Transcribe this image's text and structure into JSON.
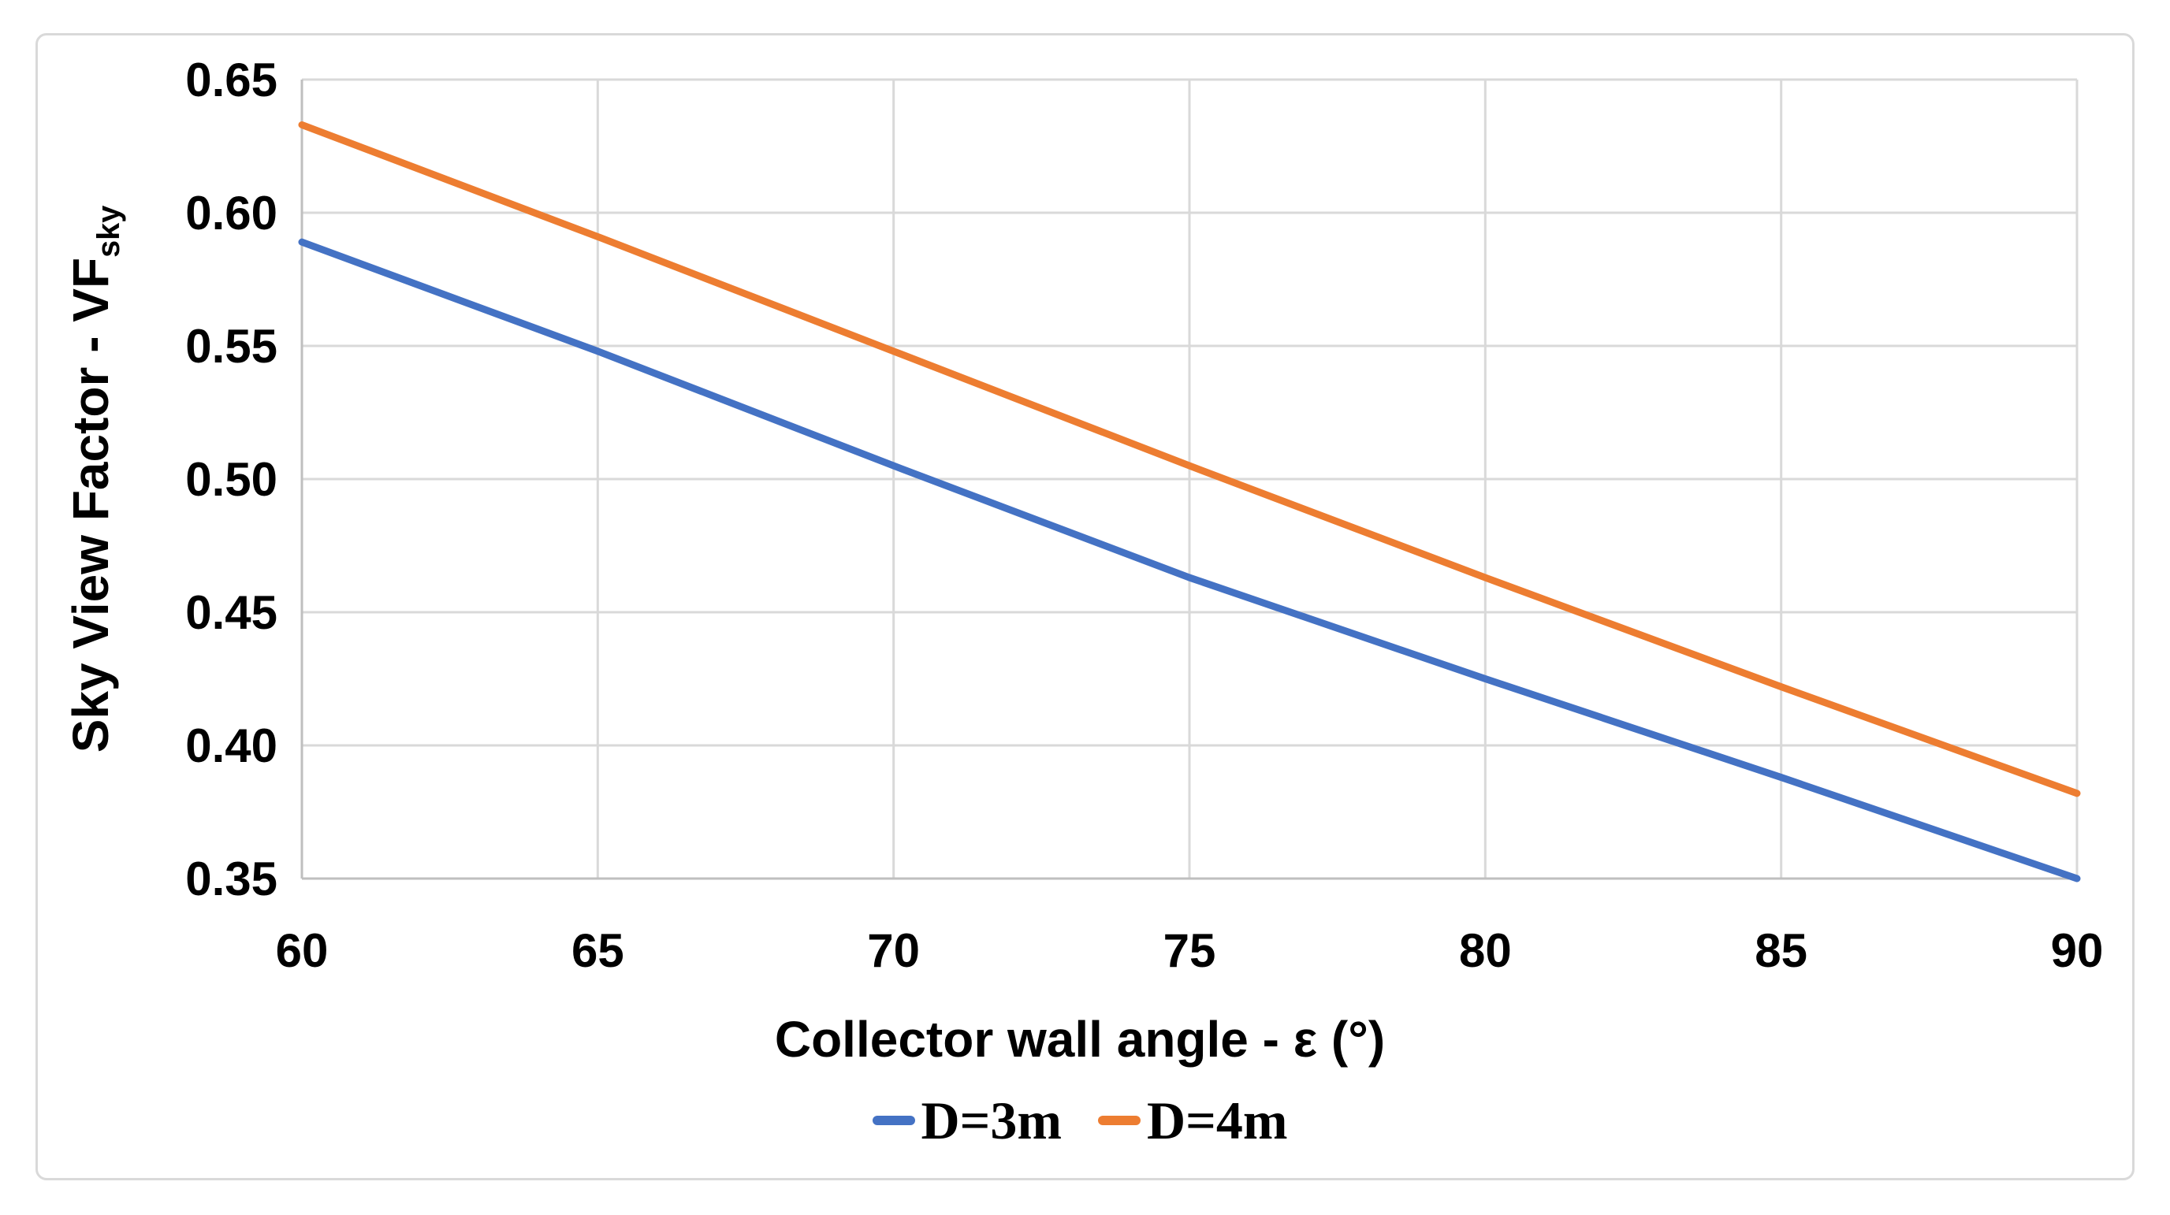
{
  "chart_data": {
    "type": "line",
    "title": "",
    "xlabel": "Collector wall angle - ε (°)",
    "ylabel": "Sky View Factor - VF",
    "ylabel_sub": "sky",
    "xlim": [
      60,
      90
    ],
    "ylim": [
      0.35,
      0.65
    ],
    "x_ticks": [
      60,
      65,
      70,
      75,
      80,
      85,
      90
    ],
    "x_tick_labels": [
      "60",
      "65",
      "70",
      "75",
      "80",
      "85",
      "90"
    ],
    "y_ticks": [
      0.35,
      0.4,
      0.45,
      0.5,
      0.55,
      0.6,
      0.65
    ],
    "y_tick_labels": [
      "0.35",
      "0.40",
      "0.45",
      "0.50",
      "0.55",
      "0.60",
      "0.65"
    ],
    "grid": true,
    "legend_position": "bottom",
    "x": [
      60,
      65,
      70,
      75,
      80,
      85,
      90
    ],
    "series": [
      {
        "name": "D=3m",
        "color": "#4472C4",
        "values": [
          0.589,
          0.548,
          0.505,
          0.463,
          0.425,
          0.388,
          0.35
        ]
      },
      {
        "name": "D=4m",
        "color": "#ED7D31",
        "values": [
          0.633,
          0.591,
          0.548,
          0.505,
          0.463,
          0.422,
          0.382
        ]
      }
    ],
    "colors": {
      "gridline": "#d9d9d9",
      "axis_line": "#bfbfbf",
      "text": "#000000",
      "frame_border": "#d9d9d9",
      "background": "#ffffff"
    }
  }
}
